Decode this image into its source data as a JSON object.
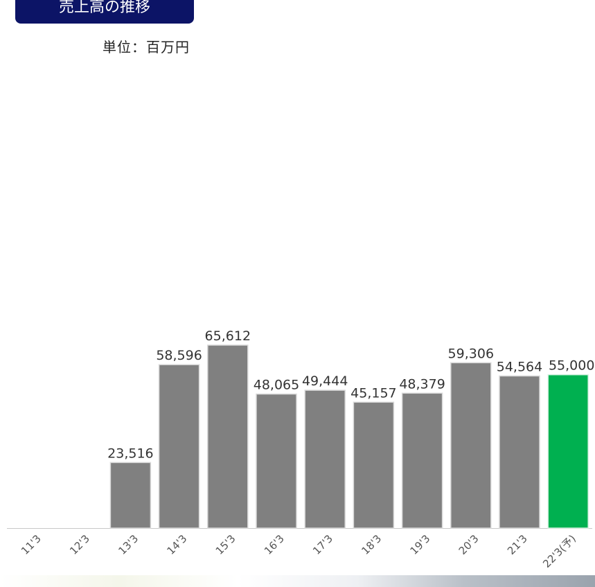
{
  "header": {
    "title": "売上高の推移",
    "unit": "単位：百万円"
  },
  "colors": {
    "bar": "#808080",
    "bar_forecast": "#00b050",
    "title_bg": "#0c1466"
  },
  "chart_data": {
    "type": "bar",
    "categories": [
      "11'3",
      "12'3",
      "13'3",
      "14'3",
      "15'3",
      "16'3",
      "17'3",
      "18'3",
      "19'3",
      "20'3",
      "21'3",
      "22'3(予)"
    ],
    "values": [
      null,
      null,
      23516,
      58596,
      65612,
      48065,
      49444,
      45157,
      48379,
      59306,
      54564,
      55000
    ],
    "value_labels": [
      "",
      "",
      "23,516",
      "58,596",
      "65,612",
      "48,065",
      "49,444",
      "45,157",
      "48,379",
      "59,306",
      "54,564",
      "55,000"
    ],
    "highlight_index": 11,
    "ylim": [
      0,
      70000
    ],
    "grid": false
  }
}
